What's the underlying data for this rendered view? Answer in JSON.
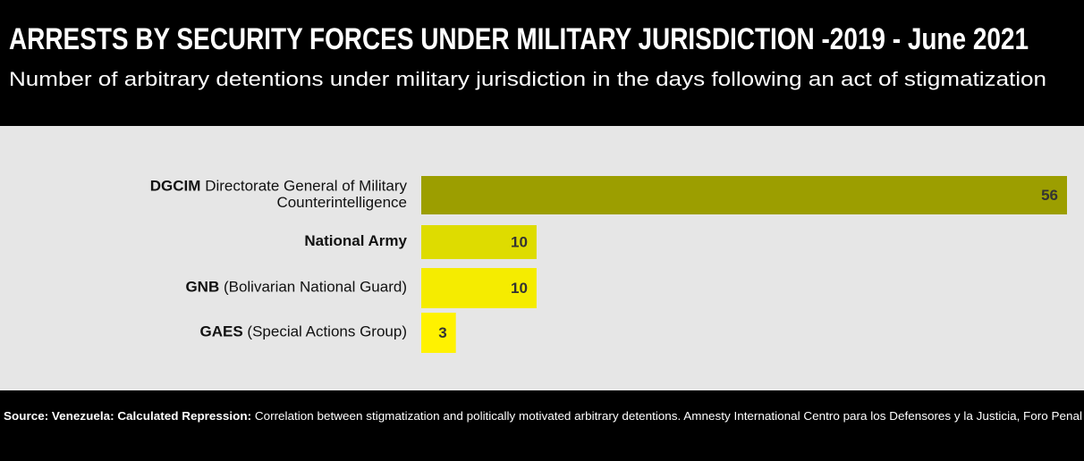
{
  "chart_data": {
    "type": "bar",
    "orientation": "horizontal",
    "title": "ARRESTS BY SECURITY FORCES UNDER MILITARY JURISDICTION -2019 - June 2021",
    "subtitle": "Number of arbitrary detentions under military jurisdiction in the days following an act of stigmatization",
    "categories": [
      {
        "abbr": "DGCIM",
        "name": [
          "Directorate General of Military",
          "Counterintelligence"
        ]
      },
      {
        "abbr": "National Army",
        "name": []
      },
      {
        "abbr": "GNB",
        "name": [
          "(Bolivarian National Guard)"
        ]
      },
      {
        "abbr": "GAES",
        "name": [
          "(Special Actions Group)"
        ]
      }
    ],
    "values": [
      56,
      10,
      10,
      3
    ],
    "colors": [
      "#9c9e00",
      "#dedc00",
      "#f5ec00",
      "#fff200"
    ],
    "source_label": "Source: Venezuela: Calculated Repression:",
    "source_text": "Correlation between stigmatization and politically motivated arbitrary detentions. Amnesty International Centro para los Defensores y la Justicia, Foro Penal"
  }
}
